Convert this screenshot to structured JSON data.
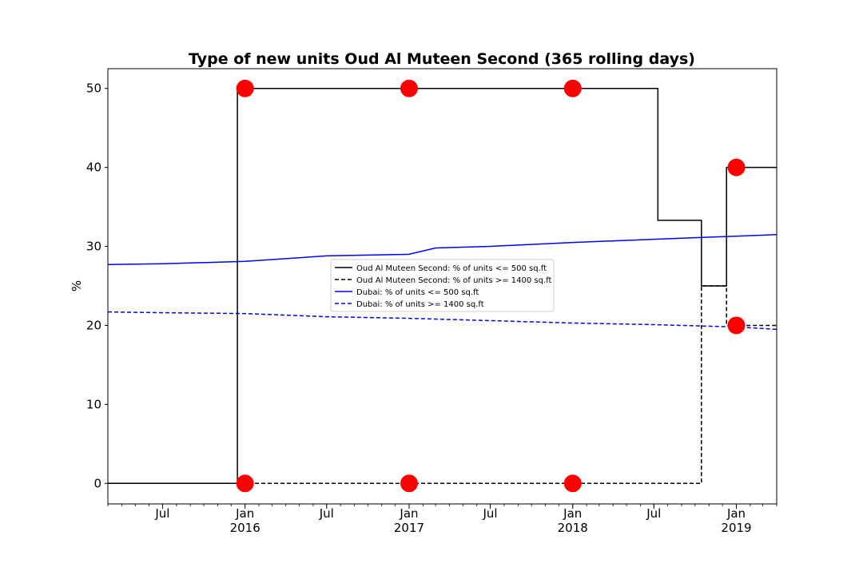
{
  "chart_data": {
    "type": "line",
    "title": "Type of new units Oud Al Muteen Second (365 rolling days)",
    "xlabel": "",
    "ylabel": "%",
    "xlim": [
      "2015-03-01",
      "2019-04-01"
    ],
    "ylim": [
      -2.6,
      52.5
    ],
    "yticks": [
      0,
      10,
      20,
      30,
      40,
      50
    ],
    "xticks": [
      {
        "date": "2015-07-01",
        "label": "Jul",
        "year": ""
      },
      {
        "date": "2016-01-01",
        "label": "Jan",
        "year": "2016"
      },
      {
        "date": "2016-07-01",
        "label": "Jul",
        "year": ""
      },
      {
        "date": "2017-01-01",
        "label": "Jan",
        "year": "2017"
      },
      {
        "date": "2017-07-01",
        "label": "Jul",
        "year": ""
      },
      {
        "date": "2018-01-01",
        "label": "Jan",
        "year": "2018"
      },
      {
        "date": "2018-07-01",
        "label": "Jul",
        "year": ""
      },
      {
        "date": "2019-01-01",
        "label": "Jan",
        "year": "2019"
      }
    ],
    "grid": false,
    "legend_position": "center",
    "series": [
      {
        "name": "Oud Al Muteen Second: % of units <= 500 sq.ft",
        "color": "#000000",
        "style": "solid",
        "step": true,
        "points": [
          [
            "2015-03-01",
            0
          ],
          [
            "2015-12-15",
            0
          ],
          [
            "2015-12-15",
            50
          ],
          [
            "2018-07-10",
            50
          ],
          [
            "2018-07-10",
            33.3
          ],
          [
            "2018-10-15",
            33.3
          ],
          [
            "2018-10-15",
            25
          ],
          [
            "2018-12-10",
            25
          ],
          [
            "2018-12-10",
            40
          ],
          [
            "2019-04-01",
            40
          ]
        ]
      },
      {
        "name": "Oud Al Muteen Second: % of units >= 1400 sq.ft",
        "color": "#000000",
        "style": "dashed",
        "step": true,
        "points": [
          [
            "2015-03-01",
            0
          ],
          [
            "2018-10-15",
            0
          ],
          [
            "2018-10-15",
            25
          ],
          [
            "2018-12-10",
            25
          ],
          [
            "2018-12-10",
            20
          ],
          [
            "2019-04-01",
            20
          ]
        ]
      },
      {
        "name": "Dubai: % of units <= 500 sq.ft",
        "color": "#0000ff",
        "style": "solid",
        "step": false,
        "points": [
          [
            "2015-03-01",
            27.7
          ],
          [
            "2015-07-01",
            27.8
          ],
          [
            "2016-01-01",
            28.1
          ],
          [
            "2016-07-01",
            28.8
          ],
          [
            "2017-01-01",
            29.0
          ],
          [
            "2017-03-01",
            29.8
          ],
          [
            "2017-07-01",
            30.0
          ],
          [
            "2018-01-01",
            30.5
          ],
          [
            "2018-07-01",
            30.9
          ],
          [
            "2019-01-01",
            31.3
          ],
          [
            "2019-04-01",
            31.5
          ]
        ]
      },
      {
        "name": "Dubai: % of units >= 1400 sq.ft",
        "color": "#0000ff",
        "style": "dashed",
        "step": false,
        "points": [
          [
            "2015-03-01",
            21.7
          ],
          [
            "2015-07-01",
            21.6
          ],
          [
            "2016-01-01",
            21.5
          ],
          [
            "2016-07-01",
            21.1
          ],
          [
            "2017-01-01",
            20.9
          ],
          [
            "2017-07-01",
            20.6
          ],
          [
            "2018-01-01",
            20.3
          ],
          [
            "2018-07-01",
            20.1
          ],
          [
            "2019-01-01",
            19.8
          ],
          [
            "2019-04-01",
            19.5
          ]
        ]
      }
    ],
    "markers": {
      "color": "#ff0000",
      "points": [
        [
          "2016-01-01",
          50
        ],
        [
          "2017-01-01",
          50
        ],
        [
          "2018-01-01",
          50
        ],
        [
          "2019-01-01",
          40
        ],
        [
          "2016-01-01",
          0
        ],
        [
          "2017-01-01",
          0
        ],
        [
          "2018-01-01",
          0
        ],
        [
          "2019-01-01",
          20
        ]
      ]
    }
  }
}
